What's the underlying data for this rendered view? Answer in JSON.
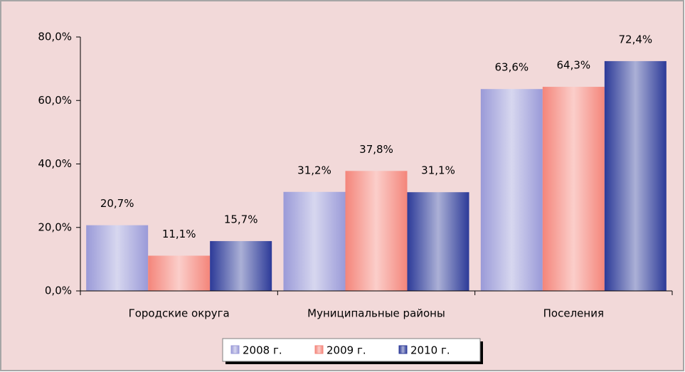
{
  "chart_data": {
    "type": "bar",
    "categories": [
      "Городские округа",
      "Муниципальные районы",
      "Поселения"
    ],
    "series": [
      {
        "name": "2008 г.",
        "color": "#9a9ad8",
        "values": [
          20.7,
          31.2,
          63.6
        ],
        "value_labels": [
          "20,7%",
          "31,2%",
          "63,6%"
        ]
      },
      {
        "name": "2009 г.",
        "color": "#f4857a",
        "values": [
          11.1,
          37.8,
          64.3
        ],
        "value_labels": [
          "11,1%",
          "37,8%",
          "64,3%"
        ]
      },
      {
        "name": "2010 г.",
        "color": "#2c3a98",
        "values": [
          15.7,
          31.1,
          72.4
        ],
        "value_labels": [
          "15,7%",
          "31,1%",
          "72,4%"
        ]
      }
    ],
    "ylim": [
      0,
      80
    ],
    "yticks": [
      {
        "value": 0,
        "label": "0,0%"
      },
      {
        "value": 20,
        "label": "20,0%"
      },
      {
        "value": 40,
        "label": "40,0%"
      },
      {
        "value": 60,
        "label": "60,0%"
      },
      {
        "value": 80,
        "label": "80,0%"
      }
    ],
    "legend": "bottom"
  }
}
